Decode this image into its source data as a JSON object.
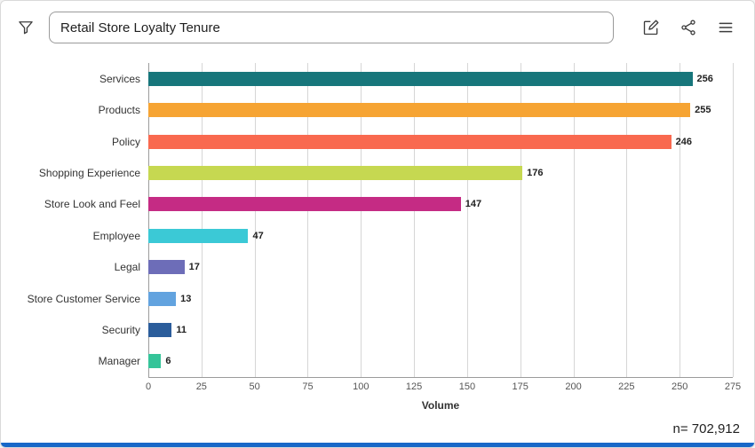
{
  "toolbar": {
    "title_value": "Retail Store Loyalty Tenure",
    "icons": [
      "filter-icon",
      "edit-icon",
      "share-icon",
      "menu-icon"
    ]
  },
  "chart_data": {
    "type": "bar",
    "orientation": "horizontal",
    "title": "",
    "categories": [
      "Services",
      "Products",
      "Policy",
      "Shopping Experience",
      "Store Look and Feel",
      "Employee",
      "Legal",
      "Store Customer Service",
      "Security",
      "Manager"
    ],
    "values": [
      256,
      255,
      246,
      176,
      147,
      47,
      17,
      13,
      11,
      6
    ],
    "colors": [
      "#17767b",
      "#f6a433",
      "#f9694f",
      "#c6d851",
      "#c52b84",
      "#3bc9d6",
      "#6d6db8",
      "#62a3df",
      "#2b5d9b",
      "#35c499"
    ],
    "xlabel": "Volume",
    "ylabel": "",
    "xlim": [
      0,
      275
    ],
    "xticks": [
      0,
      25,
      50,
      75,
      100,
      125,
      150,
      175,
      200,
      225,
      250,
      275
    ],
    "grid": true,
    "legend": false
  },
  "footer": {
    "n_label": "n= 702,912"
  },
  "colors": {
    "accent": "#1868c8"
  }
}
